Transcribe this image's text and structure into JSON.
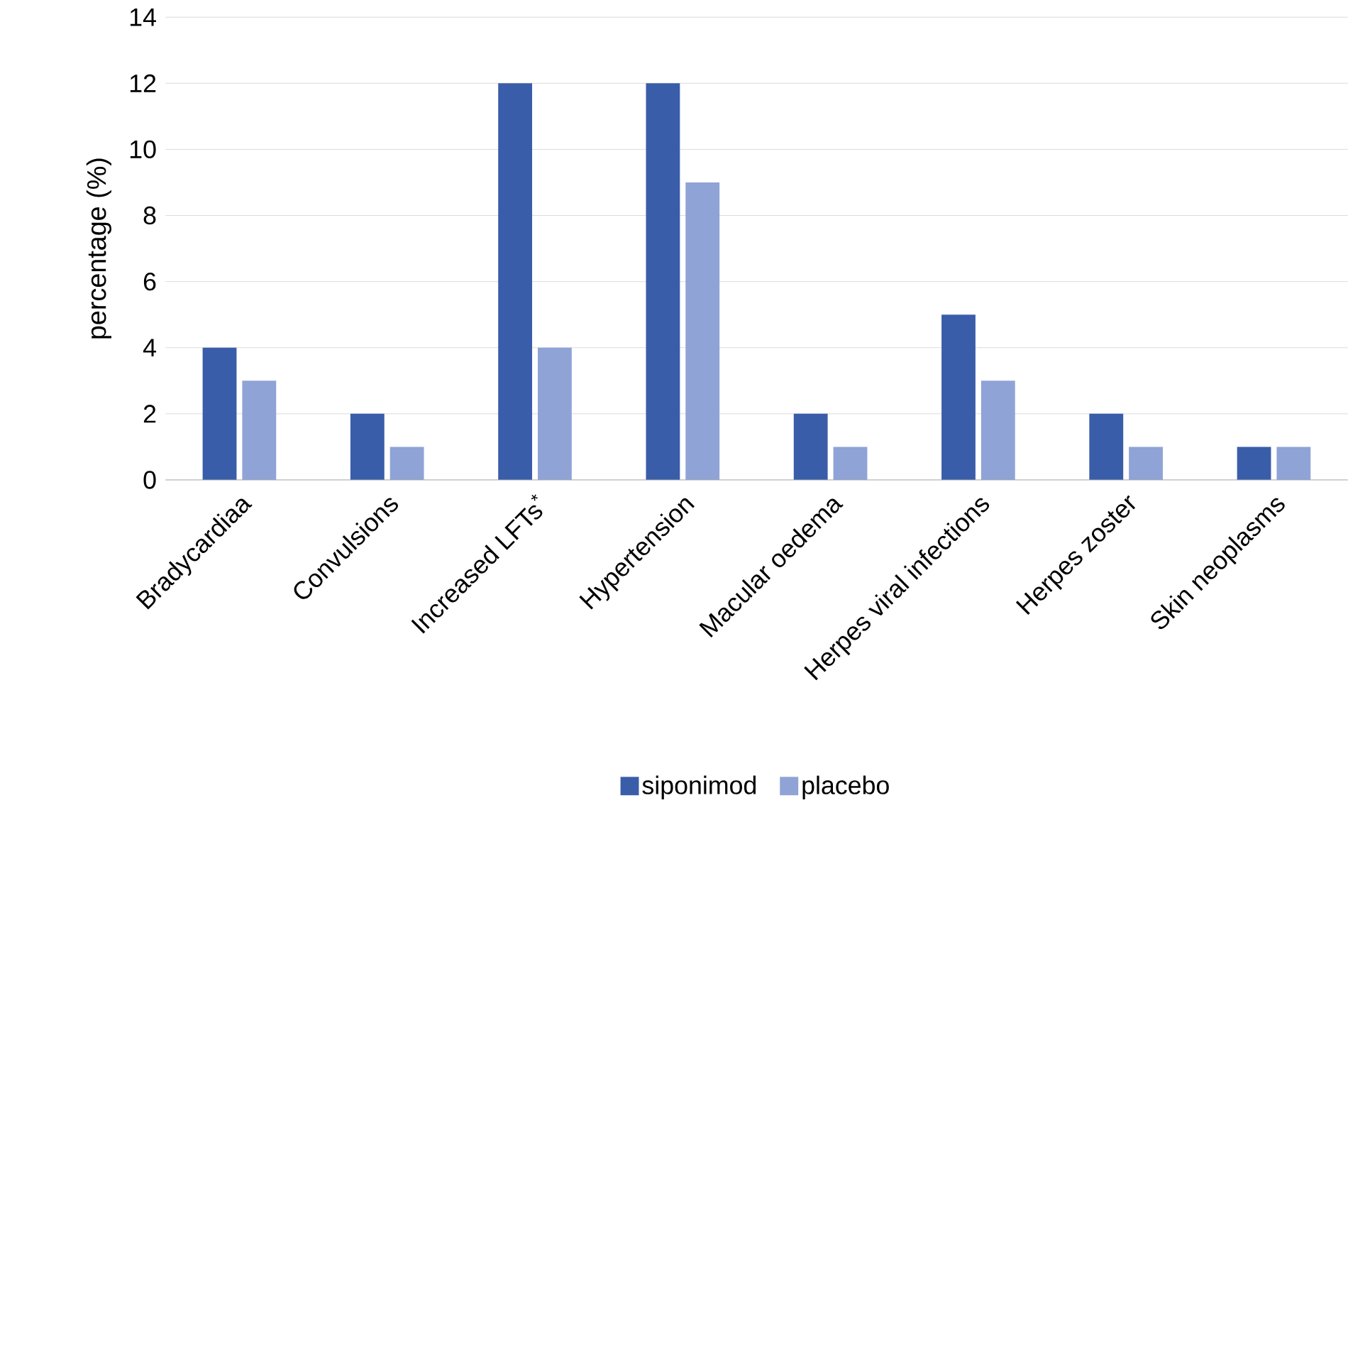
{
  "chart_data": {
    "type": "bar",
    "ylabel": "percentage (%)",
    "categories": [
      "Bradycardiaa",
      "Convulsions",
      "Increased LFTs$^{*}$",
      "Hypertension",
      "Macular oedema",
      "Herpes viral infections",
      "Herpes zoster",
      "Skin neoplasms"
    ],
    "series": [
      {
        "name": "siponimod",
        "color": "#3a5daa",
        "values": [
          4,
          2,
          12,
          12,
          2,
          5,
          2,
          1
        ]
      },
      {
        "name": "placebo",
        "color": "#8fa3d6",
        "values": [
          3,
          1,
          4,
          9,
          1,
          3,
          1,
          1
        ]
      }
    ],
    "ylim": [
      0,
      14
    ],
    "yticks": [
      0,
      2,
      4,
      6,
      8,
      10,
      12,
      14
    ],
    "grid": "y",
    "legend": "bottom"
  }
}
